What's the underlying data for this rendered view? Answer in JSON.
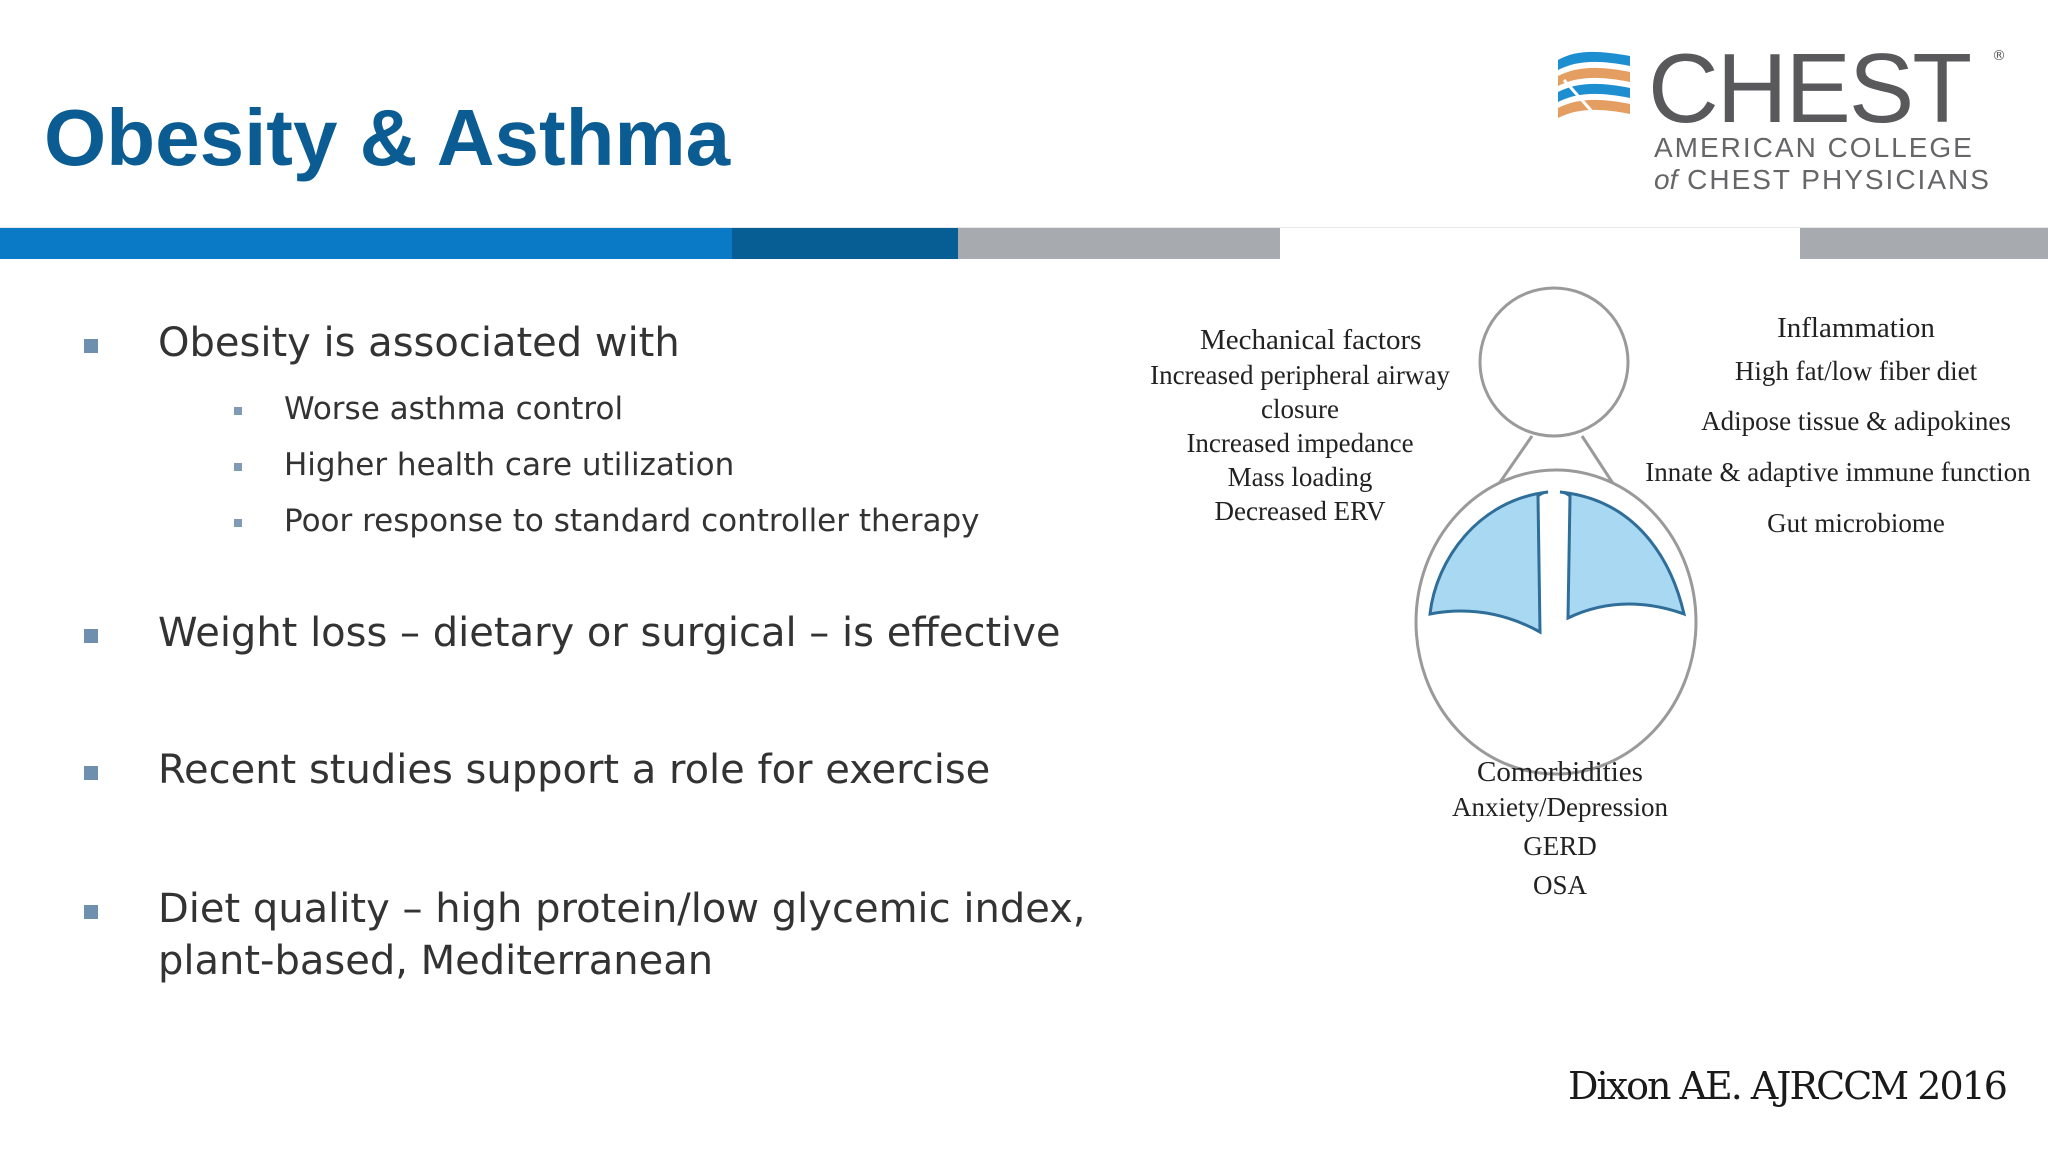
{
  "slide": {
    "title": "Obesity & Asthma",
    "citation": "Dixon AE. AJRCCM 2016"
  },
  "logo": {
    "wordmark": "CHEST",
    "registered": "®",
    "line1": "AMERICAN COLLEGE",
    "line2_prefix": "of",
    "line2": "CHEST PHYSICIANS",
    "icon": "chest-stripes-logo-icon"
  },
  "bullets": [
    {
      "text": "Obesity is associated with",
      "sub": [
        "Worse asthma control",
        "Higher health care utilization",
        "Poor response to standard controller therapy"
      ]
    },
    {
      "text": "Weight loss – dietary or surgical – is effective"
    },
    {
      "text": "Recent studies support a role for exercise"
    },
    {
      "text": "Diet quality – high protein/low glycemic index,",
      "text2": "plant-based, Mediterranean"
    }
  ],
  "figure": {
    "mechanical": {
      "heading": "Mechanical factors",
      "items": [
        "Increased peripheral airway",
        "closure",
        "Increased impedance",
        "Mass loading",
        "Decreased ERV"
      ]
    },
    "inflammation": {
      "heading": "Inflammation",
      "items": [
        "High fat/low fiber diet",
        "Adipose tissue & adipokines",
        "Innate & adaptive immune function",
        "Gut microbiome"
      ]
    },
    "comorbidities": {
      "heading": "Comorbidities",
      "items": [
        "Anxiety/Depression",
        "GERD",
        "OSA"
      ]
    }
  },
  "colors": {
    "title": "#0b5c93",
    "band_blue": "#0a7ac6",
    "band_dark": "#075e94",
    "band_gray": "#a7aaaf",
    "lung_fill": "#a9d8f2",
    "logo_blue": "#1d8fd0",
    "logo_orange": "#e59e61"
  }
}
